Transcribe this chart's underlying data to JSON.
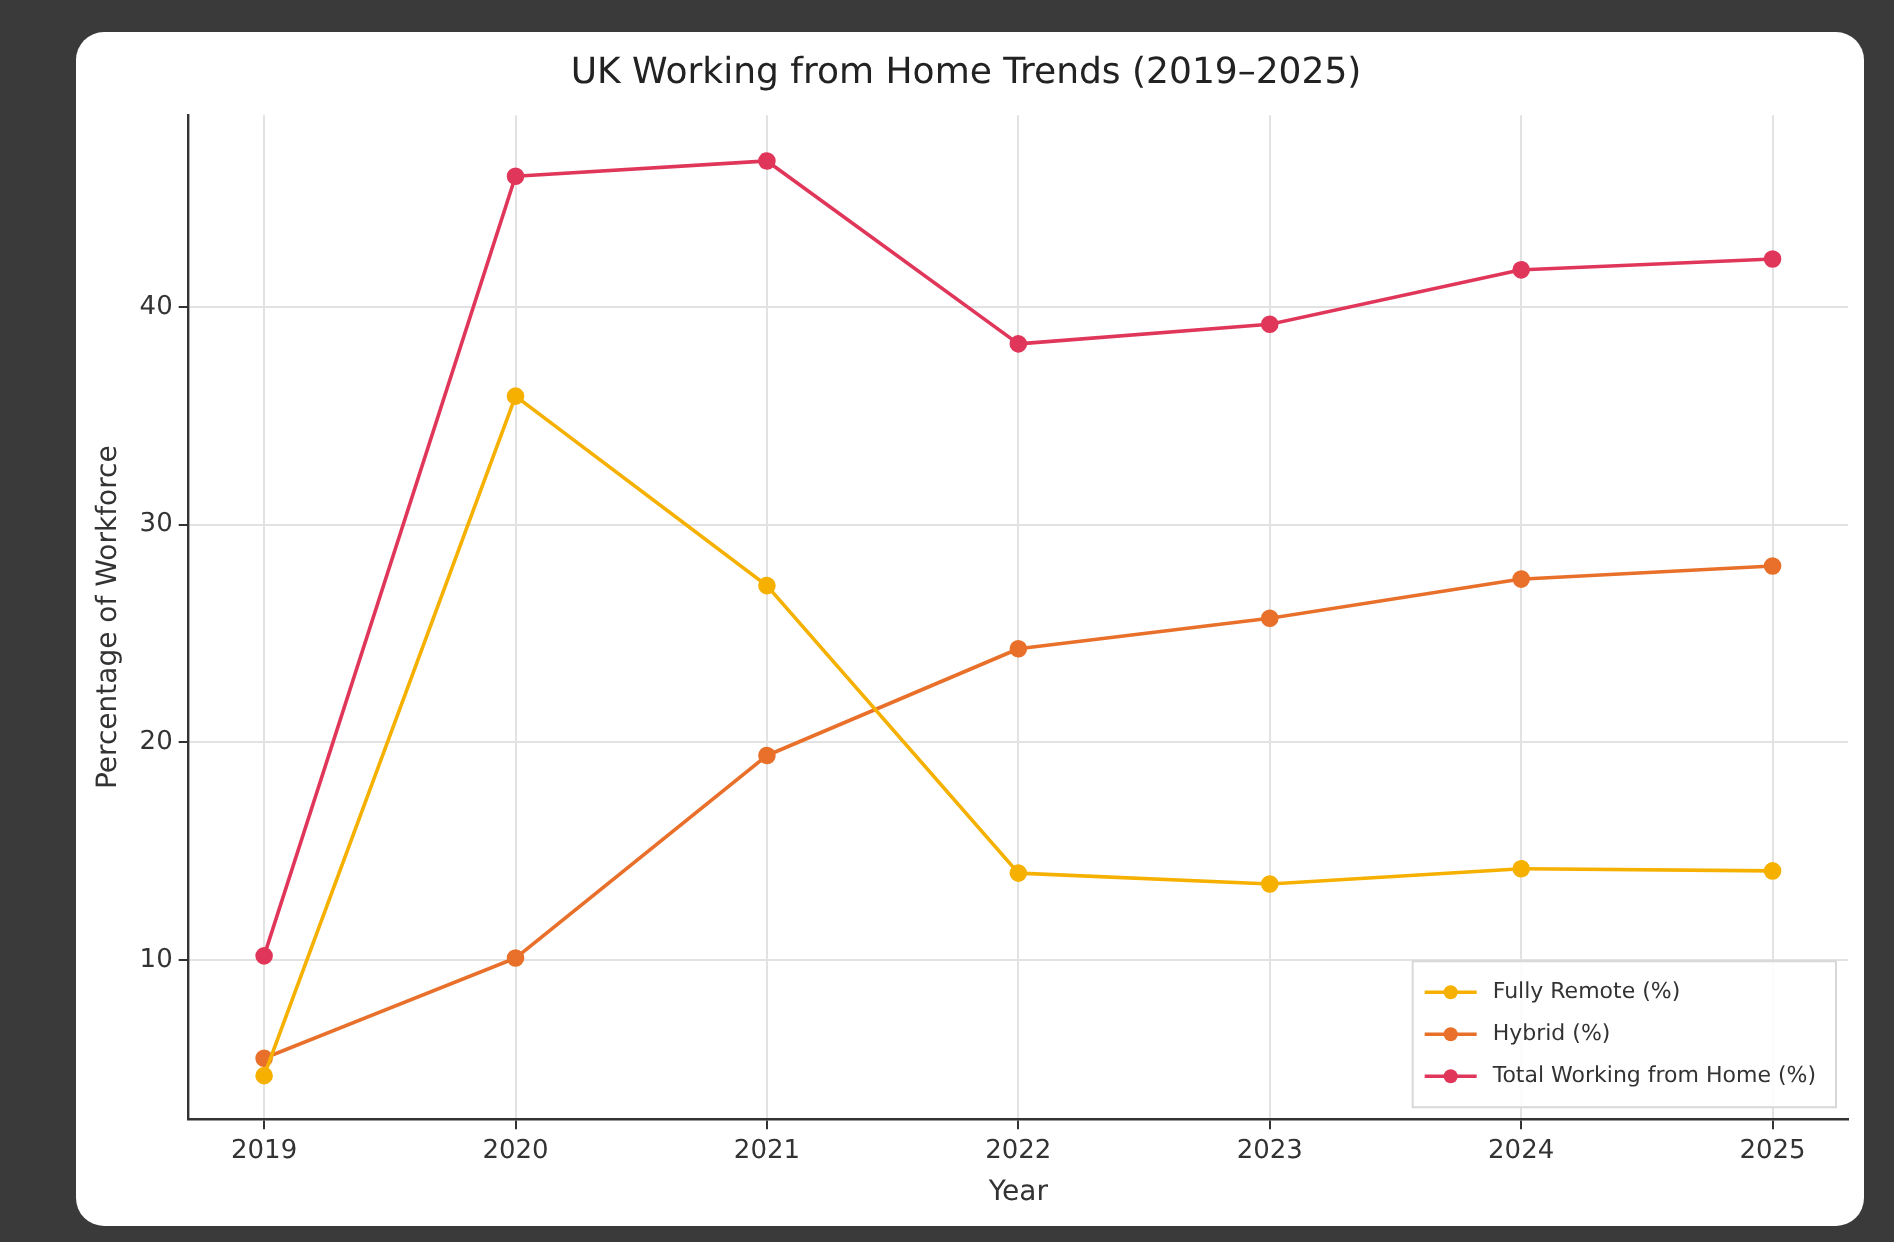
{
  "chart_data": {
    "type": "line",
    "title": "UK Working from Home Trends (2019–2025)",
    "xlabel": "Year",
    "ylabel": "Percentage of Workforce",
    "x": [
      2019,
      2020,
      2021,
      2022,
      2023,
      2024,
      2025
    ],
    "xlim": [
      2018.7,
      2025.3
    ],
    "xticks": [
      2019,
      2020,
      2021,
      2022,
      2023,
      2024,
      2025
    ],
    "ylim": [
      2.7,
      48.8
    ],
    "yticks": [
      10,
      20,
      30,
      40
    ],
    "grid": true,
    "legend": "bottom right",
    "marker": "circle",
    "line_style": "solid",
    "series": [
      {
        "name": "Fully Remote (%)",
        "color": "#f5b000",
        "values": [
          4.7,
          35.9,
          27.2,
          14.0,
          13.5,
          14.2,
          14.1
        ]
      },
      {
        "name": "Hybrid (%)",
        "color": "#e8702a",
        "values": [
          5.5,
          10.1,
          19.4,
          24.3,
          25.7,
          27.5,
          28.1
        ]
      },
      {
        "name": "Total Working from Home (%)",
        "color": "#e0365a",
        "values": [
          10.2,
          46.0,
          46.7,
          38.3,
          39.2,
          41.7,
          42.2
        ]
      }
    ]
  }
}
